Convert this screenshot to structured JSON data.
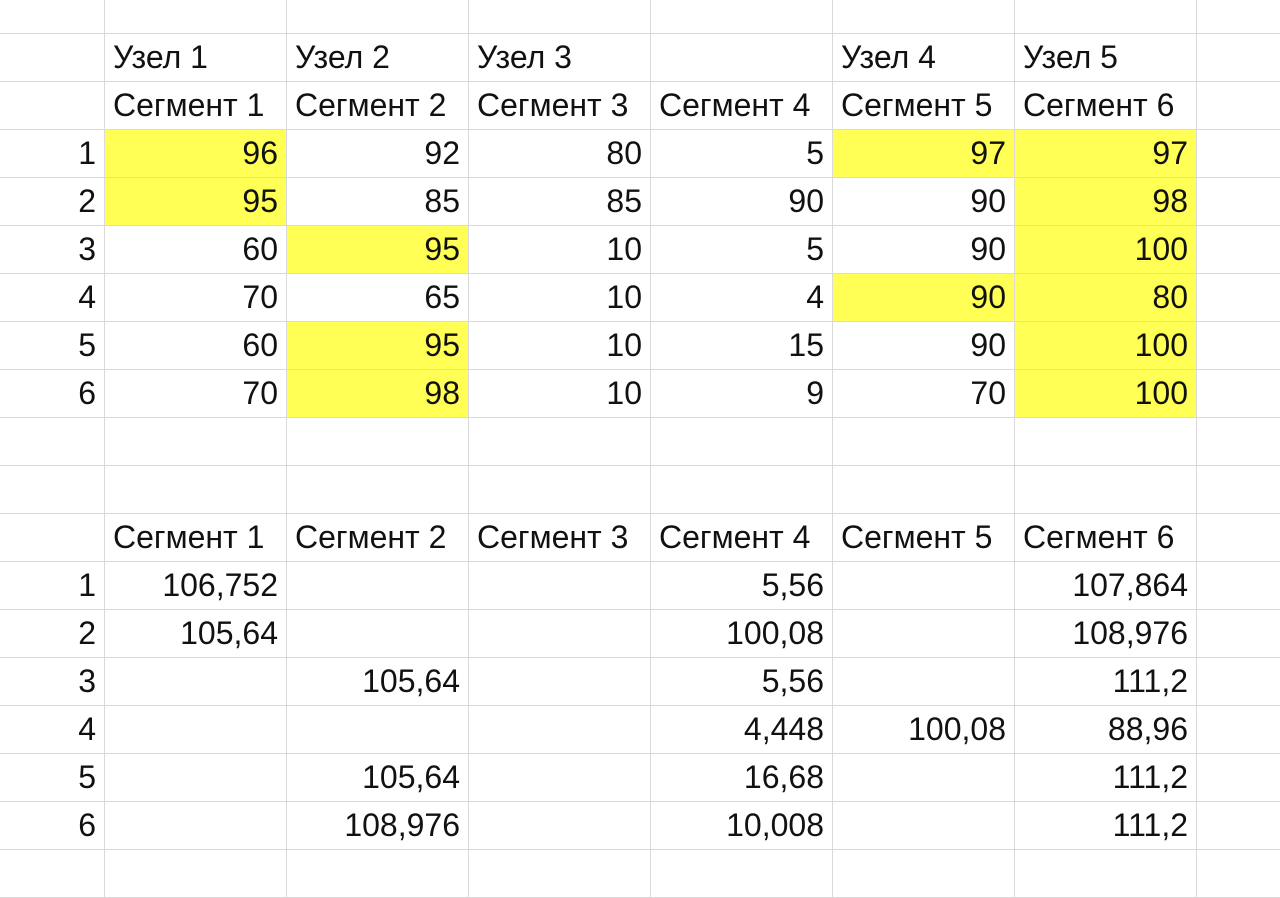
{
  "top": {
    "nodes": [
      "Узел 1",
      "Узел 2",
      "Узел 3",
      "",
      "Узел 4",
      "Узел 5"
    ],
    "segments": [
      "Сегмент 1",
      "Сегмент 2",
      "Сегмент 3",
      "Сегмент 4",
      "Сегмент 5",
      "Сегмент 6"
    ],
    "rows": [
      {
        "n": "1",
        "v": [
          "96",
          "92",
          "80",
          "5",
          "97",
          "97"
        ]
      },
      {
        "n": "2",
        "v": [
          "95",
          "85",
          "85",
          "90",
          "90",
          "98"
        ]
      },
      {
        "n": "3",
        "v": [
          "60",
          "95",
          "10",
          "5",
          "90",
          "100"
        ]
      },
      {
        "n": "4",
        "v": [
          "70",
          "65",
          "10",
          "4",
          "90",
          "80"
        ]
      },
      {
        "n": "5",
        "v": [
          "60",
          "95",
          "10",
          "15",
          "90",
          "100"
        ]
      },
      {
        "n": "6",
        "v": [
          "70",
          "98",
          "10",
          "9",
          "70",
          "100"
        ]
      }
    ],
    "highlight_color": "#ffff55"
  },
  "bottom": {
    "segments": [
      "Сегмент 1",
      "Сегмент 2",
      "Сегмент 3",
      "Сегмент 4",
      "Сегмент 5",
      "Сегмент 6"
    ],
    "rows": [
      {
        "n": "1",
        "v": [
          "106,752",
          "",
          "",
          "5,56",
          "",
          "107,864"
        ]
      },
      {
        "n": "2",
        "v": [
          "105,64",
          "",
          "",
          "100,08",
          "",
          "108,976"
        ]
      },
      {
        "n": "3",
        "v": [
          "",
          "105,64",
          "",
          "5,56",
          "",
          "111,2"
        ]
      },
      {
        "n": "4",
        "v": [
          "",
          "",
          "",
          "4,448",
          "100,08",
          "88,96"
        ]
      },
      {
        "n": "5",
        "v": [
          "",
          "105,64",
          "",
          "16,68",
          "",
          "111,2"
        ]
      },
      {
        "n": "6",
        "v": [
          "",
          "108,976",
          "",
          "10,008",
          "",
          "111,2"
        ]
      }
    ]
  }
}
